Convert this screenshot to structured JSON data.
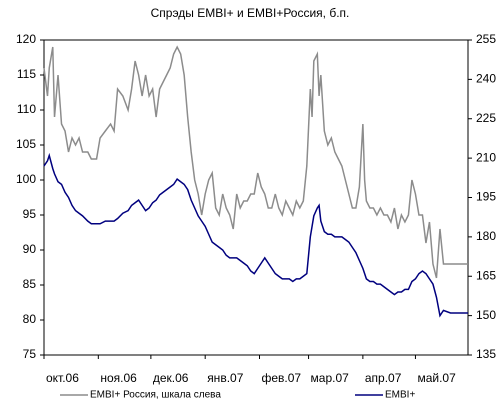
{
  "chart_data": {
    "type": "line",
    "title": "Спрэды EMBI+ и EMBI+Россия, б.п.",
    "x": [
      0,
      2,
      3,
      5,
      6,
      8,
      10,
      12,
      14,
      16,
      18,
      20,
      22,
      25,
      27,
      30,
      32,
      35,
      38,
      40,
      42,
      45,
      48,
      50,
      52,
      54,
      56,
      58,
      60,
      62,
      64,
      66,
      68,
      70,
      72,
      74,
      76,
      78,
      80,
      82,
      84,
      86,
      88,
      90,
      92,
      94,
      96,
      98,
      100,
      102,
      104,
      106,
      108,
      110,
      112,
      114,
      116,
      118,
      120,
      122,
      124,
      126,
      128,
      130,
      132,
      134,
      136,
      138,
      140,
      142,
      144,
      146,
      148,
      150,
      152,
      153,
      154,
      156,
      157,
      158,
      160,
      162,
      164,
      166,
      168,
      170,
      172,
      174,
      176,
      178,
      180,
      182,
      183,
      184,
      186,
      188,
      190,
      192,
      194,
      196,
      198,
      200,
      202,
      204,
      206,
      208,
      210,
      212,
      214,
      216,
      218,
      220,
      222,
      224,
      226,
      228,
      232,
      242
    ],
    "xlim": [
      0,
      242
    ],
    "xticks": [
      {
        "value": 0,
        "label": "окт.06"
      },
      {
        "value": 31,
        "label": "ноя.06"
      },
      {
        "value": 61,
        "label": "дек.06"
      },
      {
        "value": 92,
        "label": "янв.07"
      },
      {
        "value": 123,
        "label": "фев.07"
      },
      {
        "value": 151,
        "label": "мар.07"
      },
      {
        "value": 182,
        "label": "апр.07"
      },
      {
        "value": 212,
        "label": "май.07"
      }
    ],
    "ylim": [
      75,
      120
    ],
    "yticks": [
      75,
      80,
      85,
      90,
      95,
      100,
      105,
      110,
      115,
      120
    ],
    "y2lim": [
      135,
      255
    ],
    "y2ticks": [
      135,
      150,
      165,
      180,
      195,
      210,
      225,
      240,
      255
    ],
    "series": [
      {
        "name": "EMBI+ Россия, шкала слева",
        "color": "#8c8c8c",
        "values": [
          116,
          112,
          116,
          119,
          109,
          115,
          108,
          107,
          104,
          106,
          105,
          106,
          104,
          104,
          103,
          103,
          106,
          107,
          108,
          107,
          113,
          112,
          110,
          113,
          117,
          115,
          112,
          115,
          112,
          113,
          109,
          113,
          114,
          115,
          116,
          118,
          119,
          118,
          115,
          109,
          104,
          100,
          98,
          95,
          98,
          100,
          101,
          96,
          95,
          98,
          96,
          95,
          93,
          98,
          96,
          97,
          97,
          98,
          98,
          101,
          99,
          98,
          96,
          96,
          98,
          96,
          95,
          97,
          96,
          95,
          97,
          96,
          97,
          102,
          113,
          109,
          117,
          118,
          112,
          115,
          107,
          105,
          106,
          104,
          103,
          102,
          100,
          98,
          96,
          96,
          99,
          108,
          100,
          97,
          96,
          96,
          95,
          96,
          95,
          95,
          94,
          96,
          93,
          95,
          94,
          95,
          100,
          98,
          95,
          95,
          91,
          94,
          88,
          86,
          93,
          88,
          88,
          88
        ]
      },
      {
        "name": "EMBI+",
        "color": "#00007f",
        "axis": "y2",
        "values": [
          207,
          209,
          211,
          206,
          204,
          201,
          200,
          197,
          195,
          192,
          190,
          189,
          188,
          186,
          185,
          185,
          185,
          186,
          186,
          186,
          187,
          189,
          190,
          192,
          193,
          194,
          192,
          190,
          191,
          193,
          194,
          196,
          197,
          198,
          199,
          200,
          202,
          201,
          200,
          198,
          194,
          191,
          188,
          186,
          184,
          181,
          178,
          177,
          176,
          175,
          173,
          172,
          172,
          172,
          171,
          170,
          169,
          167,
          166,
          168,
          170,
          172,
          170,
          168,
          166,
          165,
          164,
          164,
          164,
          163,
          164,
          164,
          165,
          166,
          180,
          184,
          188,
          191,
          192,
          186,
          182,
          181,
          181,
          180,
          180,
          180,
          179,
          178,
          176,
          174,
          171,
          168,
          166,
          164,
          163,
          163,
          162,
          162,
          161,
          160,
          159,
          158,
          159,
          159,
          160,
          160,
          163,
          164,
          166,
          167,
          166,
          164,
          162,
          157,
          150,
          152,
          151,
          151
        ]
      }
    ],
    "legend": "bottom"
  }
}
